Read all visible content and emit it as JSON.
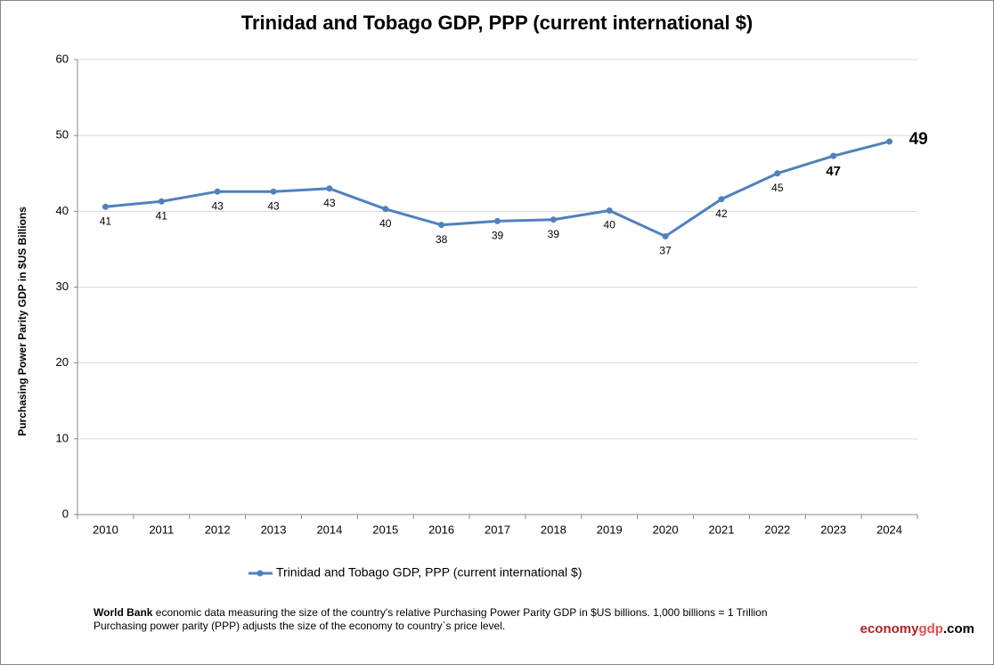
{
  "chart_data": {
    "type": "line",
    "title": "Trinidad and Tobago GDP, PPP (current international $)",
    "y_axis_label": "Purchasing Power Parity GDP in $US Billions",
    "categories": [
      "2010",
      "2011",
      "2012",
      "2013",
      "2014",
      "2015",
      "2016",
      "2017",
      "2018",
      "2019",
      "2020",
      "2021",
      "2022",
      "2023",
      "2024"
    ],
    "series": [
      {
        "name": "Trinidad and Tobago GDP, PPP (current international $)",
        "color": "#4f81bd",
        "values": [
          40.6,
          41.3,
          42.6,
          42.6,
          43.0,
          40.3,
          38.2,
          38.7,
          38.9,
          40.1,
          36.7,
          41.6,
          45.0,
          47.3,
          49.2
        ],
        "value_labels": [
          "41",
          "41",
          "43",
          "43",
          "43",
          "40",
          "38",
          "39",
          "39",
          "40",
          "37",
          "42",
          "45",
          "47",
          "49"
        ]
      }
    ],
    "ylim": [
      0,
      60
    ],
    "yticks": [
      0,
      10,
      20,
      30,
      40,
      50,
      60
    ],
    "grid": true,
    "legend": "bottom"
  },
  "footer": {
    "source": "World Bank",
    "text1": " economic data  measuring the size of the country's relative  Purchasing Power Parity GDP in $US billions. 1,000 billions = 1 Trillion",
    "text2": "Purchasing power parity (PPP) adjusts the size of the economy to country`s price level.",
    "brand1": "economy",
    "brand2": "gdp",
    "brand3": ".com"
  }
}
